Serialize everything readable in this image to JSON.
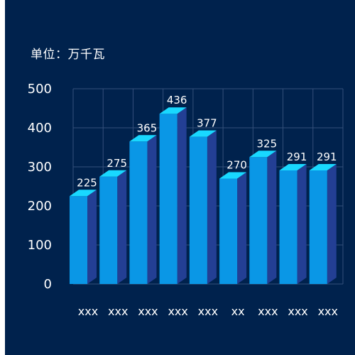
{
  "unit_label": "单位：万千瓦",
  "colors": {
    "background": "#00224d",
    "bar_front": "#0a97e6",
    "bar_side": "#233f94",
    "bar_top": "#19d8ff",
    "grid": "#34507a",
    "text": "#ffffff"
  },
  "chart_data": {
    "type": "bar",
    "style": "3d-bar",
    "categories": [
      "xxx",
      "xxx",
      "xxx",
      "xxx",
      "xxx",
      "xx",
      "xxx",
      "xxx",
      "xxx"
    ],
    "values": [
      225,
      275,
      365,
      436,
      377,
      270,
      325,
      291,
      291
    ],
    "ylabel": "单位：万千瓦",
    "ylim": [
      0,
      500
    ],
    "yticks": [
      0,
      100,
      200,
      300,
      400,
      500
    ],
    "grid": true,
    "legend": "none"
  }
}
